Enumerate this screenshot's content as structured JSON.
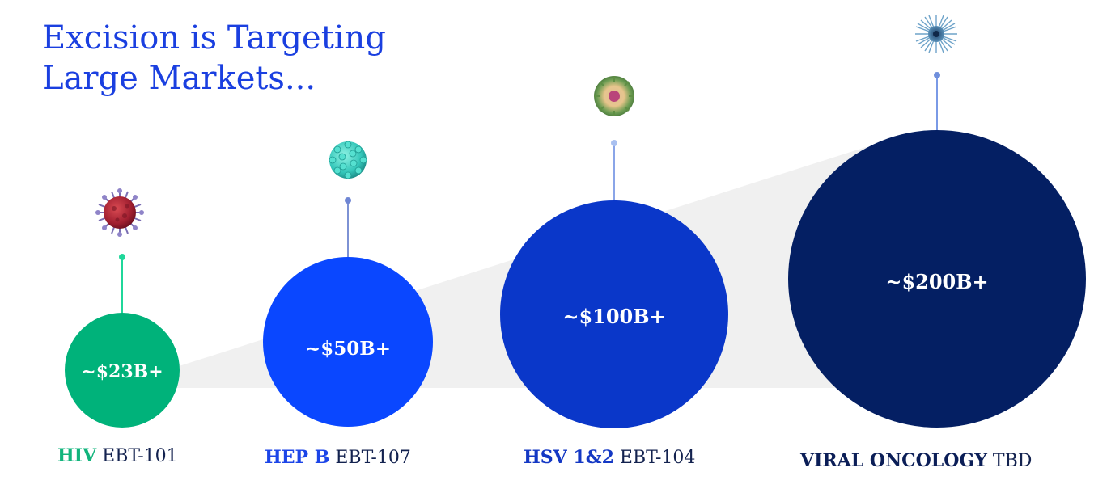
{
  "title": {
    "line1": "Excision is Targeting",
    "line2": "Large Markets..."
  },
  "markets": [
    {
      "name": "HIV",
      "program": "EBT-101",
      "value": "~$23B+",
      "color": "#00b27a",
      "stem_color": "#1fd79a",
      "name_color": "#12b47c",
      "icon": "virus-hiv-icon",
      "icon_color": "#a52032"
    },
    {
      "name": "HEP B",
      "program": "EBT-107",
      "value": "~$50B+",
      "color": "#0a47ff",
      "stem_color": "#7d92d4",
      "name_color": "#1c45e8",
      "icon": "virus-hepb-icon",
      "icon_color": "#35cbbf"
    },
    {
      "name": "HSV 1&2",
      "program": "EBT-104",
      "value": "~$100B+",
      "color": "#0a37c9",
      "stem_color": "#8aa5e8",
      "name_color": "#1438c4",
      "icon": "virus-hsv-icon",
      "icon_color": "#b8578d"
    },
    {
      "name": "VIRAL ONCOLOGY",
      "program": "TBD",
      "value": "~$200B+",
      "color": "#041f63",
      "stem_color": "#7a9ae6",
      "name_color": "#0b1e57",
      "icon": "virus-oncology-icon",
      "icon_color": "#3a6f97"
    }
  ]
}
